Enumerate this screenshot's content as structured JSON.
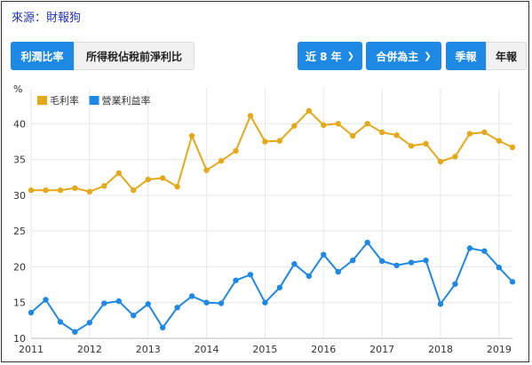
{
  "source_label": "來源：財報狗",
  "tabs": {
    "profit_ratio": "利潤比率",
    "pretax_ratio": "所得稅佔稅前淨利比"
  },
  "filters": {
    "period": "近 8 年",
    "consolidation": "合併為主",
    "quarterly": "季報",
    "annual": "年報"
  },
  "colors": {
    "accent": "#1e88e5",
    "gross_margin": "#e4a91a",
    "operating_margin": "#1e88e5"
  },
  "chart_data": {
    "type": "line",
    "title": "",
    "ylabel": "%",
    "xlabel": "",
    "ylim": [
      10,
      45
    ],
    "yticks": [
      10,
      15,
      20,
      25,
      30,
      35,
      40
    ],
    "xlim": [
      2011.0,
      2019.23
    ],
    "xticks": [
      2011,
      2012,
      2013,
      2014,
      2015,
      2016,
      2017,
      2018,
      2019
    ],
    "grid": true,
    "legend_position": "top-left",
    "series": [
      {
        "name": "毛利率",
        "color": "#e4a91a",
        "x": [
          2011.0,
          2011.25,
          2011.5,
          2011.75,
          2012.0,
          2012.25,
          2012.5,
          2012.75,
          2013.0,
          2013.25,
          2013.5,
          2013.75,
          2014.0,
          2014.25,
          2014.5,
          2014.75,
          2015.0,
          2015.25,
          2015.5,
          2015.75,
          2016.0,
          2016.25,
          2016.5,
          2016.75,
          2017.0,
          2017.25,
          2017.5,
          2017.75,
          2018.0,
          2018.25,
          2018.5,
          2018.75,
          2019.0,
          2019.23
        ],
        "values": [
          30.7,
          30.7,
          30.7,
          31.0,
          30.5,
          31.3,
          33.1,
          30.7,
          32.2,
          32.4,
          31.2,
          38.3,
          33.5,
          34.8,
          36.2,
          41.1,
          37.5,
          37.6,
          39.7,
          41.8,
          39.8,
          40.0,
          38.3,
          40.0,
          38.8,
          38.4,
          36.9,
          37.2,
          34.7,
          35.4,
          38.6,
          38.8,
          37.6,
          36.7
        ]
      },
      {
        "name": "營業利益率",
        "color": "#1e88e5",
        "x": [
          2011.0,
          2011.25,
          2011.5,
          2011.75,
          2012.0,
          2012.25,
          2012.5,
          2012.75,
          2013.0,
          2013.25,
          2013.5,
          2013.75,
          2014.0,
          2014.25,
          2014.5,
          2014.75,
          2015.0,
          2015.25,
          2015.5,
          2015.75,
          2016.0,
          2016.25,
          2016.5,
          2016.75,
          2017.0,
          2017.25,
          2017.5,
          2017.75,
          2018.0,
          2018.25,
          2018.5,
          2018.75,
          2019.0,
          2019.23
        ],
        "values": [
          13.6,
          15.4,
          12.3,
          10.9,
          12.2,
          14.9,
          15.2,
          13.2,
          14.8,
          11.5,
          14.3,
          15.9,
          15.0,
          14.9,
          18.1,
          18.9,
          15.0,
          17.1,
          20.4,
          18.7,
          21.7,
          19.3,
          20.9,
          23.4,
          20.8,
          20.2,
          20.6,
          20.9,
          14.8,
          17.6,
          22.6,
          22.2,
          19.9,
          17.9
        ]
      }
    ]
  }
}
